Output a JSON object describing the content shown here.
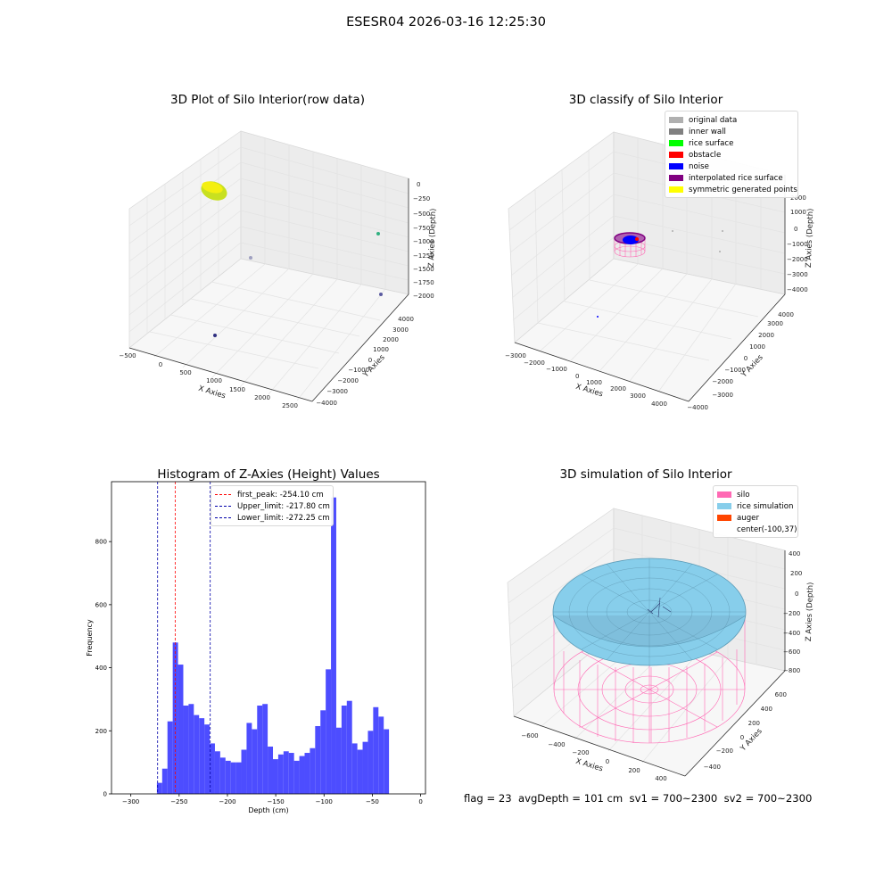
{
  "figure": {
    "suptitle": "ESESR04 2026-03-16 12:25:30",
    "status_line": "flag = 23  avgDepth = 101 cm  sv1 = 700~2300  sv2 = 700~2300"
  },
  "colors": {
    "hist_bar": "#4d4dff",
    "first_peak": "#ff0000",
    "limits": "#0000aa",
    "silo": "#ff69b4",
    "rice": "#87ceeb",
    "auger": "#ff4500"
  },
  "chart_data": [
    {
      "type": "scatter3d",
      "title": "3D Plot of Silo Interior(row data)",
      "xlabel": "X Axies",
      "ylabel": "Y Axies",
      "zlabel": "Z Axies (Depth)",
      "x_ticks": [
        "−500",
        "0",
        "500",
        "1000",
        "1500",
        "2000",
        "2500"
      ],
      "y_ticks": [
        "−4000",
        "−3000",
        "−2000",
        "−1000",
        "0",
        "1000",
        "2000",
        "3000",
        "4000"
      ],
      "z_ticks": [
        "0",
        "−250",
        "−500",
        "−750",
        "−1000",
        "−1250",
        "−1500",
        "−1750",
        "−2000"
      ],
      "points_description": "yellow-green cluster of point cloud near top-left; isolated outlier points"
    },
    {
      "type": "scatter3d",
      "title": "3D classify of Silo Interior",
      "xlabel": "X Axies",
      "ylabel": "Y Axies",
      "zlabel": "Z Axies (Depth)",
      "x_ticks": [
        "−3000",
        "−2000",
        "−1000",
        "0",
        "1000",
        "2000",
        "3000",
        "4000"
      ],
      "y_ticks": [
        "−4000",
        "−3000",
        "−2000",
        "−1000",
        "0",
        "1000",
        "2000",
        "3000",
        "4000"
      ],
      "z_ticks": [
        "2000",
        "1000",
        "0",
        "−1000",
        "−2000",
        "−3000",
        "−4000"
      ],
      "legend": [
        {
          "label": "original data",
          "color": "#b0b0b0"
        },
        {
          "label": "inner wall",
          "color": "#808080"
        },
        {
          "label": "rice surface",
          "color": "#00ff00"
        },
        {
          "label": "obstacle",
          "color": "#ff0000"
        },
        {
          "label": "noise",
          "color": "#0000ff"
        },
        {
          "label": "interpolated rice surface",
          "color": "#800080"
        },
        {
          "label": "symmetric generated points",
          "color": "#ffff00"
        }
      ]
    },
    {
      "type": "bar",
      "title": "Histogram of Z-Axies (Height) Values",
      "xlabel": "Depth (cm)",
      "ylabel": "Frequency",
      "xlim": [
        -320,
        5
      ],
      "ylim": [
        0,
        990
      ],
      "x_ticks": [
        -300,
        -250,
        -200,
        -150,
        -100,
        -50,
        0
      ],
      "x_tick_labels": [
        "−300",
        "−250",
        "−200",
        "−150",
        "−100",
        "−50",
        "0"
      ],
      "y_ticks": [
        0,
        200,
        400,
        600,
        800
      ],
      "bin_start": -273,
      "bin_width": 5.46,
      "values": [
        35,
        80,
        230,
        480,
        410,
        280,
        285,
        250,
        240,
        220,
        160,
        135,
        115,
        105,
        100,
        100,
        140,
        225,
        205,
        280,
        285,
        150,
        110,
        125,
        135,
        130,
        105,
        120,
        130,
        145,
        215,
        265,
        395,
        940,
        210,
        280,
        295,
        160,
        140,
        165,
        200,
        275,
        245,
        205
      ],
      "lines": [
        {
          "label": "first_peak: -254.10 cm",
          "x": -254.1,
          "color": "#ff0000"
        },
        {
          "label": "Upper_limit: -217.80 cm",
          "x": -217.8,
          "color": "#0000aa"
        },
        {
          "label": "Lower_limit: -272.25 cm",
          "x": -272.25,
          "color": "#0000aa"
        }
      ]
    },
    {
      "type": "surface3d",
      "title": "3D simulation of Silo Interior",
      "xlabel": "X Axies",
      "ylabel": "Y Axies",
      "zlabel": "Z Axies (Depth)",
      "x_ticks": [
        "−600",
        "−400",
        "−200",
        "0",
        "200",
        "400"
      ],
      "y_ticks": [
        "−400",
        "−200",
        "0",
        "200",
        "400",
        "600"
      ],
      "z_ticks": [
        "400",
        "200",
        "0",
        "−200",
        "−400",
        "−600",
        "−800"
      ],
      "legend": [
        {
          "label": "silo",
          "color": "#ff69b4"
        },
        {
          "label": "rice simulation",
          "color": "#87ceeb"
        },
        {
          "label": "auger",
          "color": "#ff4500"
        },
        {
          "label": "center(-100,37)",
          "color": ""
        }
      ]
    }
  ]
}
